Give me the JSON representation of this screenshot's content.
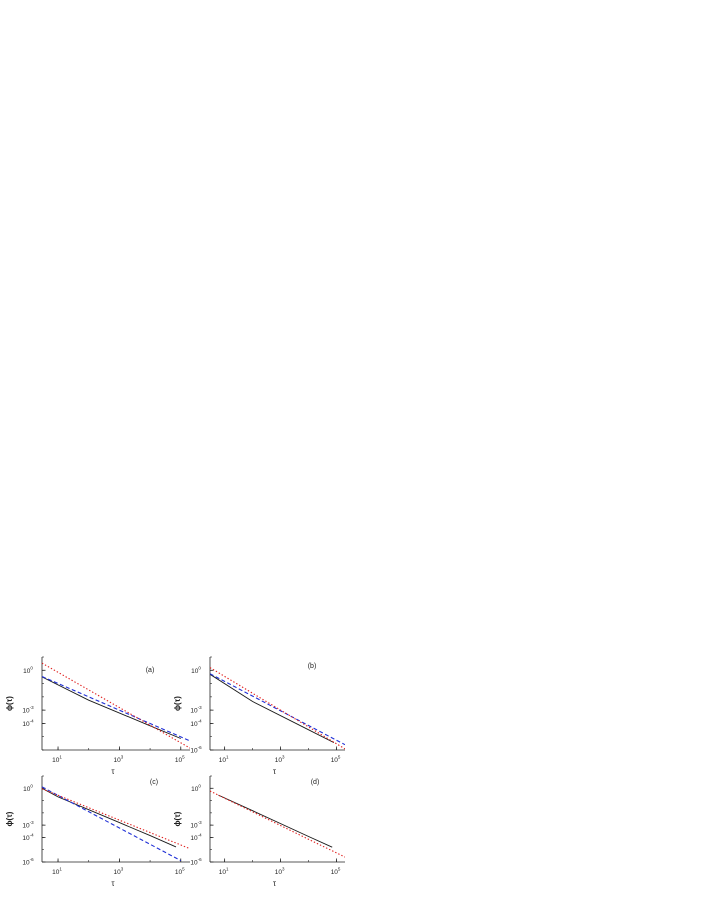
{
  "chart_data": [
    {
      "type": "line",
      "panel_label": "(a)",
      "xlabel": "τ",
      "ylabel": "ϕ(τ)",
      "xscale": "log",
      "yscale": "log",
      "xlim": [
        3,
        200000
      ],
      "ylim": [
        1e-06,
        10
      ],
      "x_ticks": [
        {
          "value": 10,
          "base": "10",
          "exp": "1"
        },
        {
          "value": 1000,
          "base": "10",
          "exp": "3"
        },
        {
          "value": 100000,
          "base": "10",
          "exp": "5"
        }
      ],
      "y_ticks": [
        {
          "value": 1,
          "base": "10",
          "exp": "0"
        },
        {
          "value": 0.001,
          "base": "10",
          "exp": "-3"
        },
        {
          "value": 0.0001,
          "base": "10",
          "exp": "-4"
        }
      ],
      "series": [
        {
          "style": "solid",
          "color": "#1a1a1a",
          "x": [
            3,
            100,
            10000,
            100000
          ],
          "y": [
            0.32,
            0.0056,
            6.6e-05,
            7.4e-06
          ]
        },
        {
          "style": "dashed",
          "color": "#1f2fd6",
          "x": [
            3,
            200000
          ],
          "y": [
            0.34,
            4.8e-06
          ]
        },
        {
          "style": "dotted",
          "color": "#e0201e",
          "x": [
            3,
            200000
          ],
          "y": [
            3.5,
            1.4e-06
          ]
        }
      ]
    },
    {
      "type": "line",
      "panel_label": "(b)",
      "xlabel": "τ",
      "ylabel": "ϕ(τ)",
      "xscale": "log",
      "yscale": "log",
      "xlim": [
        3,
        200000
      ],
      "ylim": [
        1e-06,
        10
      ],
      "x_ticks": [
        {
          "value": 10,
          "base": "10",
          "exp": "1"
        },
        {
          "value": 1000,
          "base": "10",
          "exp": "3"
        },
        {
          "value": 100000,
          "base": "10",
          "exp": "5"
        }
      ],
      "y_ticks": [
        {
          "value": 1,
          "base": "10",
          "exp": "0"
        },
        {
          "value": 0.001,
          "base": "10",
          "exp": "-3"
        },
        {
          "value": 0.0001,
          "base": "10",
          "exp": "-4"
        },
        {
          "value": 1e-06,
          "base": "10",
          "exp": "-6"
        }
      ],
      "series": [
        {
          "style": "solid",
          "color": "#1a1a1a",
          "x": [
            3,
            100,
            10000,
            80000
          ],
          "y": [
            0.5,
            0.0045,
            3.3e-05,
            3.6e-06
          ]
        },
        {
          "style": "dashed",
          "color": "#1f2fd6",
          "x": [
            3,
            200000
          ],
          "y": [
            0.55,
            2.5e-06
          ]
        },
        {
          "style": "dotted",
          "color": "#e0201e",
          "x": [
            3,
            200000
          ],
          "y": [
            1.6,
            1.2e-06
          ]
        }
      ]
    },
    {
      "type": "line",
      "panel_label": "(c)",
      "xlabel": "τ",
      "ylabel": "ϕ(τ)",
      "xscale": "log",
      "yscale": "log",
      "xlim": [
        3,
        200000
      ],
      "ylim": [
        1e-06,
        10
      ],
      "x_ticks": [
        {
          "value": 10,
          "base": "10",
          "exp": "1"
        },
        {
          "value": 1000,
          "base": "10",
          "exp": "3"
        },
        {
          "value": 100000,
          "base": "10",
          "exp": "5"
        }
      ],
      "y_ticks": [
        {
          "value": 1,
          "base": "10",
          "exp": "0"
        },
        {
          "value": 0.001,
          "base": "10",
          "exp": "-3"
        },
        {
          "value": 0.0001,
          "base": "10",
          "exp": "-4"
        },
        {
          "value": 1e-06,
          "base": "10",
          "exp": "-6"
        }
      ],
      "series": [
        {
          "style": "solid",
          "color": "#1a1a1a",
          "x": [
            3,
            10,
            100,
            1000,
            10000,
            70000
          ],
          "y": [
            1.0,
            0.2,
            0.018,
            0.0016,
            0.00014,
            1.7e-05
          ]
        },
        {
          "style": "dashed",
          "color": "#1f2fd6",
          "x": [
            3,
            100000
          ],
          "y": [
            1.3,
            1.3e-06
          ]
        },
        {
          "style": "dotted",
          "color": "#e0201e",
          "x": [
            3,
            200000
          ],
          "y": [
            0.9,
            1.2e-05
          ]
        }
      ]
    },
    {
      "type": "line",
      "panel_label": "(d)",
      "xlabel": "τ",
      "ylabel": "ϕ(τ)",
      "xscale": "log",
      "yscale": "log",
      "xlim": [
        3,
        200000
      ],
      "ylim": [
        1e-06,
        10
      ],
      "x_ticks": [
        {
          "value": 10,
          "base": "10",
          "exp": "1"
        },
        {
          "value": 1000,
          "base": "10",
          "exp": "3"
        },
        {
          "value": 100000,
          "base": "10",
          "exp": "5"
        }
      ],
      "y_ticks": [
        {
          "value": 1,
          "base": "10",
          "exp": "0"
        },
        {
          "value": 0.001,
          "base": "10",
          "exp": "-3"
        },
        {
          "value": 0.0001,
          "base": "10",
          "exp": "-4"
        },
        {
          "value": 1e-06,
          "base": "10",
          "exp": "-6"
        }
      ],
      "series": [
        {
          "style": "solid",
          "color": "#1a1a1a",
          "x": [
            6,
            100,
            10000,
            70000
          ],
          "y": [
            0.28,
            0.015,
            0.00012,
            1.6e-05
          ]
        },
        {
          "style": "dotted",
          "color": "#e0201e",
          "x": [
            3,
            200000
          ],
          "y": [
            0.6,
            2.5e-06
          ]
        }
      ]
    }
  ]
}
